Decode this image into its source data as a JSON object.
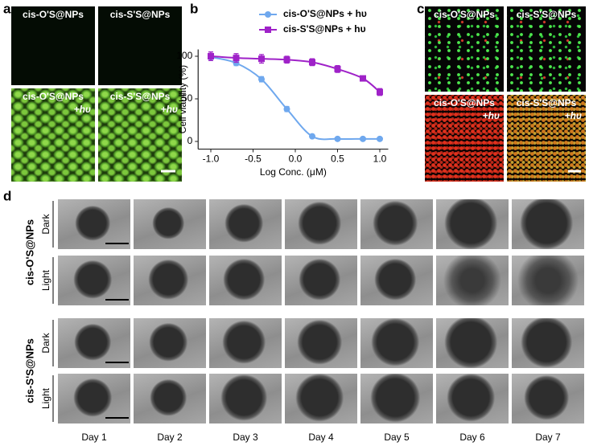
{
  "panel_labels": [
    "a",
    "b",
    "c",
    "d"
  ],
  "panel_a": {
    "images": [
      {
        "label": "cis-O'S@NPs"
      },
      {
        "label": "cis-S'S@NPs"
      },
      {
        "label": "cis-O'S@NPs",
        "sublabel": "+hυ"
      },
      {
        "label": "cis-S'S@NPs",
        "sublabel": "+hυ"
      }
    ]
  },
  "chart_data": {
    "type": "line",
    "x_label": "Log Conc. (μM)",
    "y_label": "Cell viability (%)",
    "x": [
      -1.0,
      -0.7,
      -0.4,
      -0.1,
      0.2,
      0.5,
      0.8,
      1.0
    ],
    "series": [
      {
        "name": "cis-O'S@NPs + hυ",
        "color": "#6fa8ee",
        "marker": "circle",
        "values": [
          99,
          92,
          73,
          38,
          6,
          3,
          3,
          3
        ],
        "errors": [
          4,
          3,
          3,
          3,
          1,
          1,
          1,
          1
        ]
      },
      {
        "name": "cis-S'S@NPs + hυ",
        "color": "#9f22c8",
        "marker": "square",
        "values": [
          100,
          98,
          97,
          96,
          93,
          85,
          74,
          58
        ],
        "errors": [
          5,
          5,
          5,
          4,
          4,
          4,
          2,
          4
        ]
      }
    ],
    "xlim": [
      -1.15,
      1.1
    ],
    "xticks": [
      {
        "value": -1.0,
        "label": "-1.0"
      },
      {
        "value": -0.5,
        "label": "-0.5"
      },
      {
        "value": 0.0,
        "label": "0.0"
      },
      {
        "value": 0.5,
        "label": "0.5"
      },
      {
        "value": 1.0,
        "label": "1.0"
      }
    ],
    "ylim": [
      -9,
      108
    ],
    "yticks": [
      0,
      50,
      100
    ],
    "legend": "top"
  },
  "panel_c": {
    "images": [
      {
        "label": "cis-O'S@NPs"
      },
      {
        "label": "cis-S'S@NPs"
      },
      {
        "label": "cis-O'S@NPs",
        "sublabel": "+hυ"
      },
      {
        "label": "cis-S'S@NPs",
        "sublabel": "+hυ"
      }
    ]
  },
  "panel_d": {
    "groups": [
      {
        "label": "cis-O'S@NPs",
        "rows": [
          "Dark",
          "Light"
        ]
      },
      {
        "label": "cis-S'S@NPs",
        "rows": [
          "Dark",
          "Light"
        ]
      }
    ],
    "days": [
      "Day 1",
      "Day 2",
      "Day 3",
      "Day 4",
      "Day 5",
      "Day 6",
      "Day 7"
    ]
  }
}
